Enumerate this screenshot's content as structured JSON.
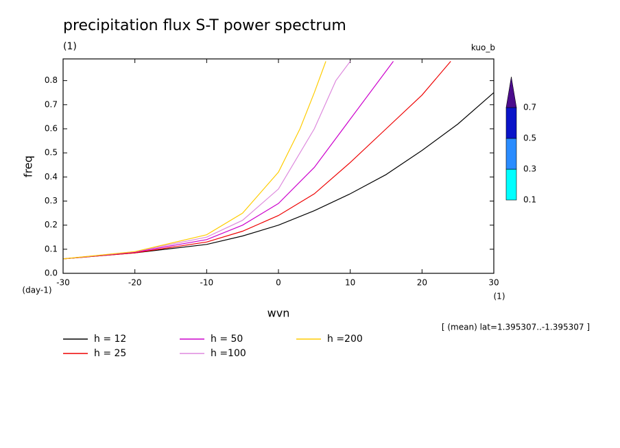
{
  "chart_data": {
    "type": "line",
    "title": "precipitation flux S-T power spectrum",
    "subtitle_left": "(1)",
    "subtitle_right": "kuo_b",
    "xlabel": "wvn",
    "xunit": "(1)",
    "ylabel": "freq",
    "yunit": "(day-1)",
    "annotation": "[ (mean) lat=1.395307..-1.395307 ]",
    "xlim": [
      -30,
      30
    ],
    "ylim": [
      0,
      0.89
    ],
    "xticks": [
      -30,
      -20,
      -10,
      0,
      10,
      20,
      30
    ],
    "yticks": [
      {
        "value": 0,
        "label": "0.0"
      },
      0.1,
      0.2,
      0.3,
      0.4,
      0.5,
      0.6,
      0.7,
      0.8
    ],
    "series": [
      {
        "name": "h = 12",
        "color": "#000000",
        "x": [
          -30,
          -20,
          -10,
          -5,
          0,
          5,
          10,
          15,
          20,
          25,
          30
        ],
        "values": [
          0.06,
          0.085,
          0.12,
          0.155,
          0.2,
          0.26,
          0.33,
          0.41,
          0.51,
          0.62,
          0.75
        ]
      },
      {
        "name": "h = 25",
        "color": "#ee0000",
        "x": [
          -30,
          -20,
          -10,
          -5,
          0,
          5,
          10,
          15,
          20,
          24
        ],
        "values": [
          0.06,
          0.085,
          0.13,
          0.175,
          0.24,
          0.33,
          0.46,
          0.6,
          0.74,
          0.88
        ]
      },
      {
        "name": "h = 50",
        "color": "#cc00cc",
        "x": [
          -30,
          -20,
          -10,
          -5,
          0,
          5,
          10,
          15,
          16
        ],
        "values": [
          0.06,
          0.088,
          0.14,
          0.2,
          0.29,
          0.44,
          0.64,
          0.84,
          0.88
        ]
      },
      {
        "name": "h =100",
        "color": "#dd88dd",
        "x": [
          -30,
          -20,
          -10,
          -5,
          0,
          5,
          8,
          10
        ],
        "values": [
          0.06,
          0.09,
          0.15,
          0.22,
          0.35,
          0.6,
          0.8,
          0.88
        ]
      },
      {
        "name": "h =200",
        "color": "#ffcc00",
        "x": [
          -30,
          -20,
          -10,
          -5,
          0,
          3,
          5,
          6.6
        ],
        "values": [
          0.06,
          0.09,
          0.16,
          0.25,
          0.42,
          0.6,
          0.75,
          0.88
        ]
      }
    ],
    "colorbar": {
      "levels": [
        0.1,
        0.3,
        0.5,
        0.7
      ],
      "colors": [
        "#00ffff",
        "#2a8cff",
        "#0a14c8",
        "#4b0c8c"
      ]
    }
  }
}
